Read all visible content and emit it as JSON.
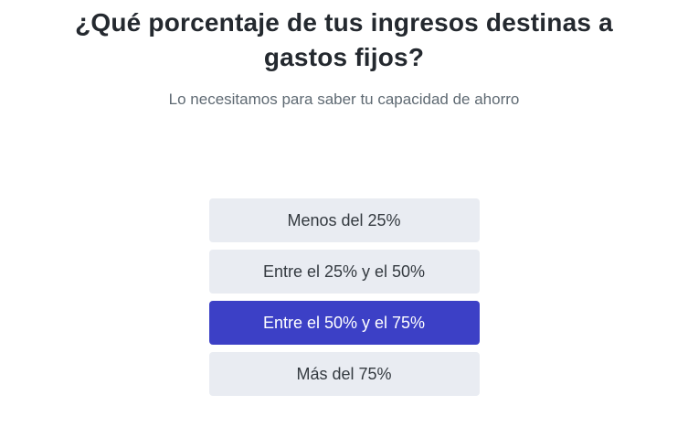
{
  "question": {
    "title": "¿Qué porcentaje de tus ingresos destinas a gastos fijos?",
    "subtitle": "Lo necesitamos para saber tu capacidad de ahorro"
  },
  "options": [
    {
      "label": "Menos del 25%",
      "selected": false
    },
    {
      "label": "Entre el 25% y el 50%",
      "selected": false
    },
    {
      "label": "Entre el 50% y el 75%",
      "selected": true
    },
    {
      "label": "Más del 75%",
      "selected": false
    }
  ],
  "colors": {
    "title_text": "#24292f",
    "subtitle_text": "#5f6a73",
    "option_bg": "#e9ecf2",
    "option_text": "#343a40",
    "selected_bg": "#3c40c6",
    "selected_text": "#ffffff"
  }
}
